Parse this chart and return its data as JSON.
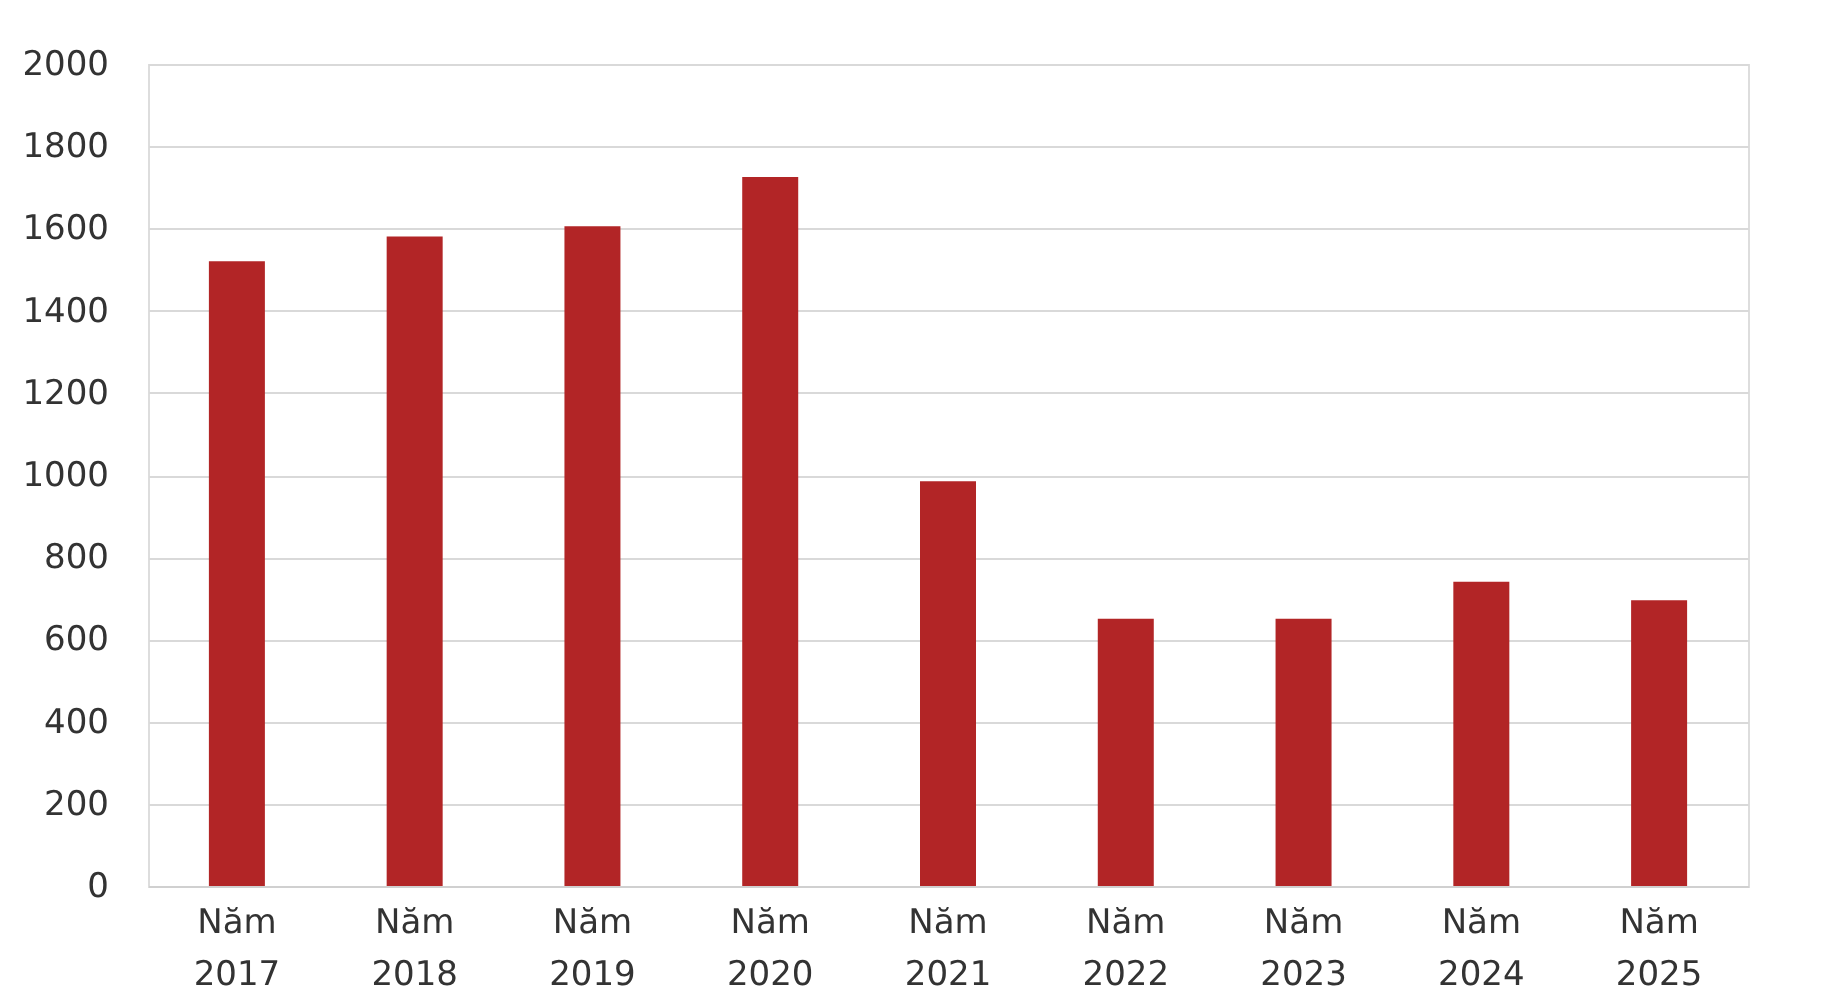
{
  "chart_data": {
    "type": "bar",
    "categories": [
      "Năm 2017",
      "Năm 2018",
      "Năm 2019",
      "Năm 2020",
      "Năm 2021",
      "Năm 2022",
      "Năm 2023",
      "Năm 2024",
      "Năm 2025"
    ],
    "values": [
      1520,
      1580,
      1605,
      1725,
      985,
      650,
      650,
      740,
      695
    ],
    "color": "#b22526",
    "ylim": [
      0,
      2000
    ],
    "yticks": [
      0,
      200,
      400,
      600,
      800,
      1000,
      1200,
      1400,
      1600,
      1800,
      2000
    ],
    "grid": "y"
  }
}
